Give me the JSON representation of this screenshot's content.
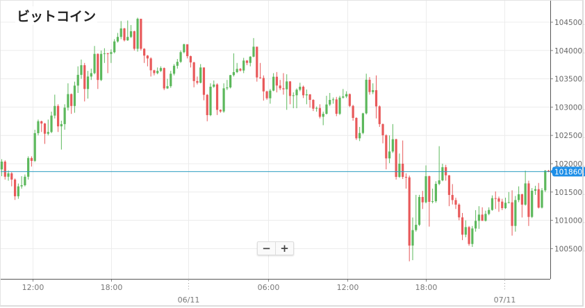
{
  "header": {
    "title": "ビットコイン"
  },
  "zoom_controls": {
    "zoom_out_label": "−",
    "zoom_in_label": "+"
  },
  "chart_data": {
    "type": "candlestick",
    "title": "ビットコイン",
    "interval": "15min",
    "ylim": [
      100000,
      104900
    ],
    "y_ticks": [
      "104500.0",
      "104000.0",
      "103500.0",
      "103000.0",
      "102500.0",
      "102000.0",
      "101500.0",
      "101000.0",
      "100500.0"
    ],
    "y_tick_values": [
      104500,
      104000,
      103500,
      103000,
      102500,
      102000,
      101500,
      101000,
      100500
    ],
    "x_ticks": [
      {
        "label": "12:00",
        "index": 9.4
      },
      {
        "label": "18:00",
        "index": 33.1
      },
      {
        "label": "",
        "date": "06/11",
        "index": 56.3
      },
      {
        "label": "06:00",
        "index": 80.4
      },
      {
        "label": "12:00",
        "index": 104.3
      },
      {
        "label": "18:00",
        "index": 128.0
      },
      {
        "label": "",
        "date": "07/11",
        "index": 151.7
      }
    ],
    "current_price": 101860.5,
    "current_price_label": "101860.5",
    "grid": true,
    "colors": {
      "up": "#5cb85c",
      "down": "#e8595a",
      "price_line": "#2a9dc0",
      "badge": "#1e8fe8"
    },
    "candles_ohlc": [
      [
        101900,
        102080,
        101780,
        102037
      ],
      [
        102037,
        102060,
        101720,
        101770
      ],
      [
        101770,
        101880,
        101700,
        101830
      ],
      [
        101830,
        101850,
        101600,
        101720
      ],
      [
        101720,
        101740,
        101360,
        101425
      ],
      [
        101425,
        101650,
        101380,
        101600
      ],
      [
        101600,
        101780,
        101560,
        101620
      ],
      [
        101620,
        101810,
        101600,
        101770
      ],
      [
        101770,
        102130,
        101720,
        102100
      ],
      [
        102100,
        102130,
        101950,
        102050
      ],
      [
        102050,
        102600,
        102030,
        102540
      ],
      [
        102540,
        102780,
        102500,
        102750
      ],
      [
        102750,
        102760,
        102560,
        102710
      ],
      [
        102710,
        102720,
        102350,
        102530
      ],
      [
        102530,
        102780,
        102500,
        102560
      ],
      [
        102560,
        102920,
        102540,
        102850
      ],
      [
        102850,
        103220,
        102800,
        103020
      ],
      [
        103020,
        103050,
        102560,
        102660
      ],
      [
        102660,
        102760,
        102250,
        102700
      ],
      [
        102700,
        103050,
        102600,
        102990
      ],
      [
        102990,
        103420,
        102940,
        103230
      ],
      [
        103230,
        103240,
        102880,
        103020
      ],
      [
        103020,
        103450,
        102900,
        103380
      ],
      [
        103380,
        103720,
        103250,
        103570
      ],
      [
        103570,
        103840,
        103500,
        103740
      ],
      [
        103740,
        103780,
        103100,
        103320
      ],
      [
        103320,
        103640,
        103150,
        103540
      ],
      [
        103540,
        103680,
        103480,
        103600
      ],
      [
        103600,
        104080,
        103580,
        103940
      ],
      [
        103940,
        103950,
        103320,
        103480
      ],
      [
        103480,
        104000,
        103460,
        103940
      ],
      [
        103940,
        104040,
        103780,
        103950
      ],
      [
        103950,
        103960,
        103600,
        103940
      ],
      [
        103940,
        104020,
        103780,
        103970
      ],
      [
        103970,
        104200,
        103950,
        104160
      ],
      [
        104160,
        104310,
        104140,
        104240
      ],
      [
        104240,
        104520,
        104200,
        104390
      ],
      [
        104390,
        104400,
        104160,
        104180
      ],
      [
        104180,
        104530,
        104170,
        104240
      ],
      [
        104240,
        104450,
        104220,
        104340
      ],
      [
        104340,
        104350,
        104000,
        104030
      ],
      [
        104030,
        104580,
        103980,
        104560
      ],
      [
        104560,
        104560,
        104000,
        104030
      ],
      [
        104030,
        104040,
        103780,
        103910
      ],
      [
        103910,
        103920,
        103720,
        103860
      ],
      [
        103860,
        103880,
        103540,
        103650
      ],
      [
        103650,
        103660,
        103560,
        103600
      ],
      [
        103600,
        103700,
        103580,
        103640
      ],
      [
        103640,
        103720,
        103620,
        103690
      ],
      [
        103690,
        103700,
        103300,
        103330
      ],
      [
        103330,
        103500,
        103320,
        103370
      ],
      [
        103370,
        103640,
        103340,
        103590
      ],
      [
        103590,
        103760,
        103560,
        103730
      ],
      [
        103730,
        103850,
        103680,
        103800
      ],
      [
        103800,
        104000,
        103780,
        103970
      ],
      [
        103970,
        104120,
        103950,
        104110
      ],
      [
        104110,
        104110,
        103860,
        103900
      ],
      [
        103900,
        103910,
        103700,
        103790
      ],
      [
        103790,
        103800,
        103350,
        103460
      ],
      [
        103460,
        103540,
        103400,
        103430
      ],
      [
        103430,
        103760,
        103420,
        103700
      ],
      [
        103700,
        103700,
        103120,
        103217
      ],
      [
        103217,
        103230,
        102750,
        102858
      ],
      [
        102858,
        103420,
        102840,
        103360
      ],
      [
        103360,
        103470,
        103340,
        103400
      ],
      [
        103400,
        103420,
        102860,
        102952
      ],
      [
        102952,
        102960,
        102900,
        102923
      ],
      [
        102923,
        103420,
        102900,
        103332
      ],
      [
        103332,
        103480,
        103300,
        103348
      ],
      [
        103348,
        103570,
        103330,
        103565
      ],
      [
        103565,
        103950,
        103540,
        103618
      ],
      [
        103618,
        103780,
        103600,
        103675
      ],
      [
        103675,
        103690,
        103630,
        103646
      ],
      [
        103646,
        103870,
        103600,
        103822
      ],
      [
        103822,
        103830,
        103740,
        103781
      ],
      [
        103781,
        103900,
        103720,
        103891
      ],
      [
        103891,
        104220,
        103880,
        104067
      ],
      [
        104067,
        104067,
        103450,
        103524
      ],
      [
        103524,
        103780,
        103500,
        103515
      ],
      [
        103515,
        103560,
        103115,
        103278
      ],
      [
        103278,
        103290,
        103130,
        103156
      ],
      [
        103156,
        103320,
        103060,
        103291
      ],
      [
        103291,
        103600,
        103280,
        103536
      ],
      [
        103536,
        103620,
        103260,
        103381
      ],
      [
        103381,
        103480,
        103300,
        103332
      ],
      [
        103332,
        103600,
        103220,
        103315
      ],
      [
        103315,
        103580,
        102952,
        103454
      ],
      [
        103454,
        103460,
        103050,
        103197
      ],
      [
        103197,
        103260,
        102980,
        103209
      ],
      [
        103209,
        103330,
        102980,
        103307
      ],
      [
        103307,
        103430,
        103280,
        103360
      ],
      [
        103360,
        103380,
        103160,
        103209
      ],
      [
        103209,
        103310,
        103050,
        103225
      ],
      [
        103225,
        103230,
        102990,
        103127
      ],
      [
        103127,
        103140,
        102930,
        102972
      ],
      [
        102972,
        103010,
        102920,
        102984
      ],
      [
        102984,
        103050,
        102800,
        102829
      ],
      [
        102829,
        102920,
        102680,
        102882
      ],
      [
        102882,
        103200,
        102870,
        103046
      ],
      [
        103046,
        103250,
        103020,
        103127
      ],
      [
        103127,
        103170,
        103060,
        103136
      ],
      [
        103136,
        103180,
        102840,
        102882
      ],
      [
        102882,
        103200,
        102860,
        103168
      ],
      [
        103168,
        103320,
        103150,
        103189
      ],
      [
        103189,
        103280,
        103160,
        103230
      ],
      [
        103230,
        103240,
        103000,
        103021
      ],
      [
        103021,
        103040,
        102760,
        102809
      ],
      [
        102809,
        102820,
        102420,
        102449
      ],
      [
        102449,
        102650,
        102400,
        102543
      ],
      [
        102543,
        102900,
        102520,
        102890
      ],
      [
        102890,
        103590,
        102870,
        103483
      ],
      [
        103483,
        103530,
        103220,
        103266
      ],
      [
        103266,
        103420,
        103230,
        103299
      ],
      [
        103299,
        103560,
        102800,
        103013
      ],
      [
        103013,
        103030,
        102650,
        102700
      ],
      [
        102700,
        102710,
        102360,
        102502
      ],
      [
        102502,
        102520,
        101900,
        102094
      ],
      [
        102094,
        102500,
        102010,
        102216
      ],
      [
        102216,
        102700,
        102190,
        102433
      ],
      [
        102433,
        102440,
        101720,
        101767
      ],
      [
        101767,
        102180,
        101750,
        102000
      ],
      [
        102000,
        102410,
        101730,
        101767
      ],
      [
        101767,
        101830,
        101560,
        101759
      ],
      [
        101759,
        101790,
        100276,
        100554
      ],
      [
        100554,
        101050,
        100296,
        100827
      ],
      [
        100827,
        101450,
        100800,
        100921
      ],
      [
        100921,
        101450,
        100900,
        101412
      ],
      [
        101412,
        101520,
        101200,
        101318
      ],
      [
        101318,
        101970,
        101300,
        101779
      ],
      [
        101779,
        101790,
        100889,
        101326
      ],
      [
        101326,
        101560,
        101300,
        101338
      ],
      [
        101338,
        101690,
        101310,
        101644
      ],
      [
        101644,
        102310,
        101620,
        101706
      ],
      [
        101706,
        102000,
        101690,
        101938
      ],
      [
        101938,
        101980,
        101700,
        101795
      ],
      [
        101795,
        101800,
        101250,
        101448
      ],
      [
        101448,
        101640,
        101280,
        101358
      ],
      [
        101358,
        101400,
        101200,
        101277
      ],
      [
        101277,
        101300,
        101000,
        101052
      ],
      [
        101052,
        101130,
        100650,
        100746
      ],
      [
        100746,
        101000,
        100700,
        100880
      ],
      [
        100880,
        100900,
        100550,
        100582
      ],
      [
        100582,
        100900,
        100530,
        100856
      ],
      [
        100856,
        101180,
        100800,
        100991
      ],
      [
        100991,
        101250,
        100850,
        101101
      ],
      [
        101101,
        101230,
        100990,
        100991
      ],
      [
        100991,
        101170,
        100980,
        101113
      ],
      [
        101113,
        101230,
        101090,
        101183
      ],
      [
        101183,
        101440,
        101170,
        101391
      ],
      [
        101391,
        101510,
        101200,
        101387
      ],
      [
        101387,
        101420,
        101150,
        101330
      ],
      [
        101330,
        101380,
        101180,
        101215
      ],
      [
        101215,
        101400,
        101200,
        101310
      ],
      [
        101310,
        101500,
        101300,
        101318
      ],
      [
        101318,
        101530,
        100730,
        100901
      ],
      [
        100901,
        101430,
        100800,
        101358
      ],
      [
        101358,
        101600,
        101320,
        101460
      ],
      [
        101460,
        101470,
        101050,
        101277
      ],
      [
        101277,
        101877,
        101260,
        101652
      ],
      [
        101652,
        101700,
        100900,
        101060
      ],
      [
        101060,
        101570,
        101040,
        101522
      ],
      [
        101522,
        101610,
        101450,
        101550
      ],
      [
        101550,
        101660,
        101210,
        101224
      ],
      [
        101224,
        101570,
        101210,
        101530
      ],
      [
        101530,
        101890,
        101500,
        101877
      ],
      [
        101877,
        101890,
        101850,
        101860.5
      ]
    ]
  }
}
